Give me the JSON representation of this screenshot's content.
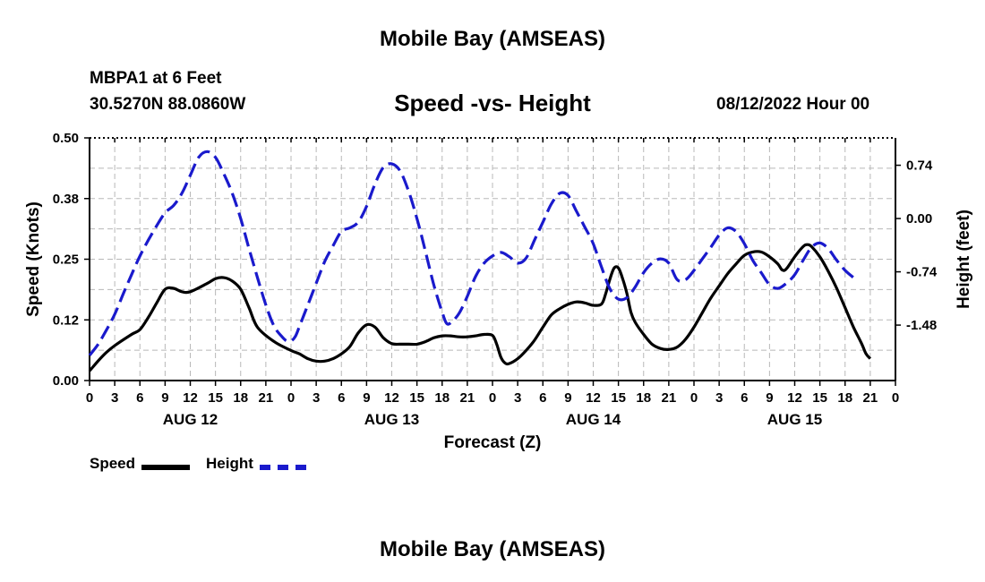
{
  "page": {
    "main_title": "Mobile Bay (AMSEAS)",
    "station": "MBPA1 at 6 Feet",
    "coords": "30.5270N  88.0860W",
    "timestamp": "08/12/2022 Hour 00",
    "bottom_title": "Mobile Bay (AMSEAS)"
  },
  "chart_data": {
    "type": "line",
    "title": "Speed -vs- Height",
    "xlabel": "Forecast (Z)",
    "ylabel": "Speed (Knots)",
    "y2label": "Height (feet)",
    "x_unit": "forecast hour",
    "xlim": [
      0,
      96
    ],
    "ylim": [
      0,
      0.5
    ],
    "y2lim": [
      -2.25,
      1.12
    ],
    "grid": true,
    "legend_position": "bottom-left",
    "x_tick_labels": [
      "0",
      "3",
      "6",
      "9",
      "12",
      "15",
      "18",
      "21",
      "0",
      "3",
      "6",
      "9",
      "12",
      "15",
      "18",
      "21",
      "0",
      "3",
      "6",
      "9",
      "12",
      "15",
      "18",
      "21",
      "0",
      "3",
      "6",
      "9",
      "12",
      "15",
      "18",
      "21",
      "0"
    ],
    "day_labels": [
      {
        "label": "AUG 12",
        "center_hour": 12
      },
      {
        "label": "AUG 13",
        "center_hour": 36
      },
      {
        "label": "AUG 14",
        "center_hour": 60
      },
      {
        "label": "AUG 15",
        "center_hour": 84
      }
    ],
    "y_ticks": [
      {
        "value": 0.0,
        "label": "0.00"
      },
      {
        "value": 0.125,
        "label": "0.12"
      },
      {
        "value": 0.25,
        "label": "0.25"
      },
      {
        "value": 0.375,
        "label": "0.38"
      },
      {
        "value": 0.5,
        "label": "0.50"
      }
    ],
    "y2_ticks": [
      {
        "value": 0.74,
        "label": "0.74"
      },
      {
        "value": 0.0,
        "label": "0.00"
      },
      {
        "value": -0.74,
        "label": "-0.74"
      },
      {
        "value": -1.48,
        "label": "-1.48"
      }
    ],
    "series": [
      {
        "name": "Speed",
        "axis": "left",
        "color": "#000000",
        "style": "solid",
        "points": [
          [
            0,
            0.02
          ],
          [
            1,
            0.04
          ],
          [
            2,
            0.058
          ],
          [
            3,
            0.072
          ],
          [
            5,
            0.095
          ],
          [
            6,
            0.105
          ],
          [
            7,
            0.13
          ],
          [
            8,
            0.16
          ],
          [
            9,
            0.188
          ],
          [
            10,
            0.19
          ],
          [
            11,
            0.183
          ],
          [
            12,
            0.183
          ],
          [
            14,
            0.2
          ],
          [
            15,
            0.21
          ],
          [
            16,
            0.212
          ],
          [
            17,
            0.205
          ],
          [
            18,
            0.188
          ],
          [
            19,
            0.15
          ],
          [
            20,
            0.11
          ],
          [
            22,
            0.08
          ],
          [
            24,
            0.062
          ],
          [
            25,
            0.055
          ],
          [
            26,
            0.045
          ],
          [
            27,
            0.04
          ],
          [
            28,
            0.04
          ],
          [
            29,
            0.045
          ],
          [
            30,
            0.055
          ],
          [
            31,
            0.07
          ],
          [
            32,
            0.098
          ],
          [
            33,
            0.115
          ],
          [
            34,
            0.11
          ],
          [
            35,
            0.088
          ],
          [
            36,
            0.076
          ],
          [
            37,
            0.075
          ],
          [
            38,
            0.075
          ],
          [
            39,
            0.075
          ],
          [
            40,
            0.08
          ],
          [
            41,
            0.088
          ],
          [
            42,
            0.092
          ],
          [
            43,
            0.092
          ],
          [
            44,
            0.09
          ],
          [
            45,
            0.09
          ],
          [
            46,
            0.092
          ],
          [
            47,
            0.095
          ],
          [
            48,
            0.093
          ],
          [
            48.5,
            0.075
          ],
          [
            49,
            0.048
          ],
          [
            49.5,
            0.036
          ],
          [
            50,
            0.035
          ],
          [
            51,
            0.045
          ],
          [
            52,
            0.062
          ],
          [
            53,
            0.083
          ],
          [
            54,
            0.11
          ],
          [
            55,
            0.135
          ],
          [
            56,
            0.148
          ],
          [
            57,
            0.157
          ],
          [
            58,
            0.162
          ],
          [
            59,
            0.16
          ],
          [
            60,
            0.155
          ],
          [
            61,
            0.158
          ],
          [
            61.5,
            0.18
          ],
          [
            62,
            0.21
          ],
          [
            62.5,
            0.232
          ],
          [
            63,
            0.232
          ],
          [
            63.5,
            0.21
          ],
          [
            64,
            0.18
          ],
          [
            64.5,
            0.14
          ],
          [
            65,
            0.12
          ],
          [
            66,
            0.095
          ],
          [
            67,
            0.075
          ],
          [
            68,
            0.066
          ],
          [
            69,
            0.064
          ],
          [
            70,
            0.069
          ],
          [
            71,
            0.085
          ],
          [
            72,
            0.11
          ],
          [
            73,
            0.14
          ],
          [
            74,
            0.17
          ],
          [
            75,
            0.195
          ],
          [
            76,
            0.22
          ],
          [
            77,
            0.24
          ],
          [
            78,
            0.258
          ],
          [
            79,
            0.265
          ],
          [
            80,
            0.265
          ],
          [
            81,
            0.255
          ],
          [
            82,
            0.24
          ],
          [
            82.5,
            0.228
          ],
          [
            83,
            0.23
          ],
          [
            84,
            0.255
          ],
          [
            85,
            0.276
          ],
          [
            85.5,
            0.28
          ],
          [
            86,
            0.276
          ],
          [
            87,
            0.255
          ],
          [
            88,
            0.225
          ],
          [
            89,
            0.19
          ],
          [
            90,
            0.15
          ],
          [
            91,
            0.11
          ],
          [
            92,
            0.075
          ],
          [
            92.5,
            0.055
          ],
          [
            93,
            0.045
          ]
        ]
      },
      {
        "name": "Height",
        "axis": "right",
        "color": "#1a1acc",
        "style": "dashed",
        "points": [
          [
            0,
            -1.9
          ],
          [
            1,
            -1.75
          ],
          [
            2,
            -1.55
          ],
          [
            3,
            -1.33
          ],
          [
            4,
            -1.05
          ],
          [
            5,
            -0.78
          ],
          [
            6,
            -0.52
          ],
          [
            7,
            -0.3
          ],
          [
            8,
            -0.1
          ],
          [
            9,
            0.08
          ],
          [
            10,
            0.18
          ],
          [
            11,
            0.35
          ],
          [
            12,
            0.6
          ],
          [
            13,
            0.85
          ],
          [
            14,
            0.93
          ],
          [
            15,
            0.85
          ],
          [
            16,
            0.62
          ],
          [
            17,
            0.35
          ],
          [
            18,
            0.0
          ],
          [
            19,
            -0.42
          ],
          [
            20,
            -0.82
          ],
          [
            21,
            -1.2
          ],
          [
            22,
            -1.5
          ],
          [
            23,
            -1.65
          ],
          [
            23.5,
            -1.7
          ],
          [
            24,
            -1.7
          ],
          [
            24.5,
            -1.64
          ],
          [
            25,
            -1.5
          ],
          [
            26,
            -1.2
          ],
          [
            27,
            -0.9
          ],
          [
            28,
            -0.6
          ],
          [
            29,
            -0.38
          ],
          [
            30,
            -0.18
          ],
          [
            31,
            -0.13
          ],
          [
            32,
            -0.05
          ],
          [
            33,
            0.17
          ],
          [
            34,
            0.48
          ],
          [
            35,
            0.71
          ],
          [
            36,
            0.76
          ],
          [
            37,
            0.66
          ],
          [
            38,
            0.38
          ],
          [
            39,
            0.0
          ],
          [
            40,
            -0.45
          ],
          [
            41,
            -0.92
          ],
          [
            42,
            -1.3
          ],
          [
            42.5,
            -1.45
          ],
          [
            43,
            -1.45
          ],
          [
            44,
            -1.32
          ],
          [
            45,
            -1.08
          ],
          [
            46,
            -0.8
          ],
          [
            47,
            -0.62
          ],
          [
            48,
            -0.52
          ],
          [
            49,
            -0.47
          ],
          [
            50,
            -0.53
          ],
          [
            51,
            -0.62
          ],
          [
            52,
            -0.55
          ],
          [
            53,
            -0.3
          ],
          [
            54,
            -0.05
          ],
          [
            55,
            0.2
          ],
          [
            56,
            0.35
          ],
          [
            57,
            0.32
          ],
          [
            58,
            0.1
          ],
          [
            59,
            -0.12
          ],
          [
            60,
            -0.35
          ],
          [
            61,
            -0.68
          ],
          [
            62,
            -0.98
          ],
          [
            63,
            -1.12
          ],
          [
            64,
            -1.1
          ],
          [
            65,
            -0.95
          ],
          [
            66,
            -0.75
          ],
          [
            67,
            -0.62
          ],
          [
            68,
            -0.56
          ],
          [
            69,
            -0.62
          ],
          [
            70,
            -0.85
          ],
          [
            71,
            -0.85
          ],
          [
            72,
            -0.72
          ],
          [
            73,
            -0.56
          ],
          [
            74,
            -0.4
          ],
          [
            75,
            -0.23
          ],
          [
            76,
            -0.13
          ],
          [
            77,
            -0.18
          ],
          [
            78,
            -0.35
          ],
          [
            79,
            -0.58
          ],
          [
            80,
            -0.75
          ],
          [
            81,
            -0.92
          ],
          [
            82,
            -0.97
          ],
          [
            83,
            -0.9
          ],
          [
            84,
            -0.78
          ],
          [
            85,
            -0.58
          ],
          [
            86,
            -0.4
          ],
          [
            87,
            -0.34
          ],
          [
            88,
            -0.42
          ],
          [
            89,
            -0.58
          ],
          [
            90,
            -0.72
          ],
          [
            91,
            -0.82
          ]
        ]
      }
    ]
  }
}
